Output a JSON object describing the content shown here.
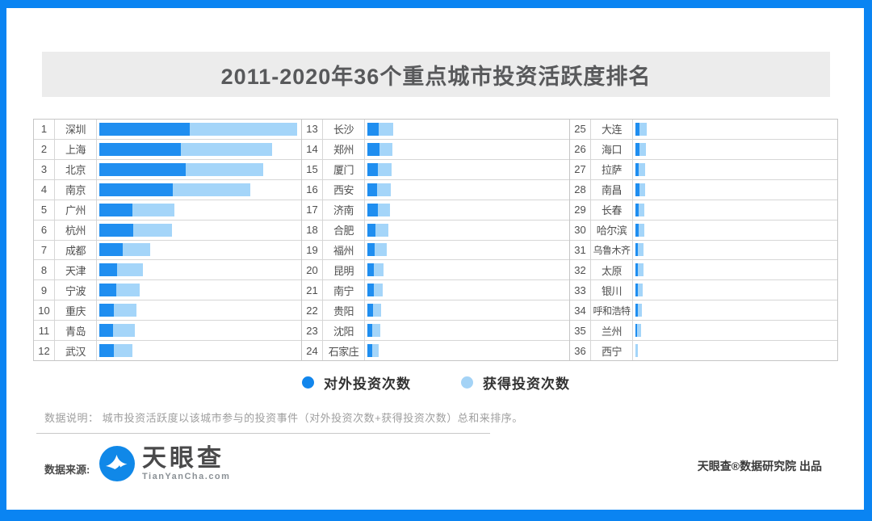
{
  "title": "2011-2020年36个重点城市投资活跃度排名",
  "legend": {
    "outbound": {
      "label": "对外投资次数",
      "color": "#1286ec"
    },
    "received": {
      "label": "获得投资次数",
      "color": "#a4d3f6"
    }
  },
  "note": "数据说明：  城市投资活跃度以该城市参与的投资事件（对外投资次数+获得投资次数）总和来排序。",
  "footer": {
    "source_label": "数据来源:",
    "logo_text": "天眼查",
    "logo_domain": "TianYanCha.com",
    "credit": "天眼查®数据研究院 出品"
  },
  "watermark": {
    "text": "天眼查",
    "domain": "TianYanCha.com"
  },
  "colors": {
    "frame": "#0a84f2",
    "banner_bg": "#ececec",
    "bar_outbound": "#1f8ef0",
    "bar_received": "#a4d5f9"
  },
  "chart_data": {
    "type": "bar",
    "orientation": "horizontal",
    "stacked": true,
    "title": "2011-2020年36个重点城市投资活跃度排名",
    "series_names": [
      "对外投资次数",
      "获得投资次数"
    ],
    "value_unit": "estimated relative bar length (no numeric axis shown in source)",
    "layout": "3 columns × 12 rows, ranked 1-36",
    "rows": [
      {
        "rank": 1,
        "city": "深圳",
        "out": 112,
        "rec": 133
      },
      {
        "rank": 2,
        "city": "上海",
        "out": 101,
        "rec": 113
      },
      {
        "rank": 3,
        "city": "北京",
        "out": 107,
        "rec": 96
      },
      {
        "rank": 4,
        "city": "南京",
        "out": 91,
        "rec": 96
      },
      {
        "rank": 5,
        "city": "广州",
        "out": 41,
        "rec": 52
      },
      {
        "rank": 6,
        "city": "杭州",
        "out": 42,
        "rec": 48
      },
      {
        "rank": 7,
        "city": "成都",
        "out": 29,
        "rec": 34
      },
      {
        "rank": 8,
        "city": "天津",
        "out": 22,
        "rec": 32
      },
      {
        "rank": 9,
        "city": "宁波",
        "out": 21,
        "rec": 29
      },
      {
        "rank": 10,
        "city": "重庆",
        "out": 18,
        "rec": 28
      },
      {
        "rank": 11,
        "city": "青岛",
        "out": 17,
        "rec": 27
      },
      {
        "rank": 12,
        "city": "武汉",
        "out": 18,
        "rec": 23
      },
      {
        "rank": 13,
        "city": "长沙",
        "out": 14,
        "rec": 18
      },
      {
        "rank": 14,
        "city": "郑州",
        "out": 15,
        "rec": 16
      },
      {
        "rank": 15,
        "city": "厦门",
        "out": 13,
        "rec": 17
      },
      {
        "rank": 16,
        "city": "西安",
        "out": 12,
        "rec": 17
      },
      {
        "rank": 17,
        "city": "济南",
        "out": 13,
        "rec": 15
      },
      {
        "rank": 18,
        "city": "合肥",
        "out": 10,
        "rec": 16
      },
      {
        "rank": 19,
        "city": "福州",
        "out": 9,
        "rec": 15
      },
      {
        "rank": 20,
        "city": "昆明",
        "out": 8,
        "rec": 12
      },
      {
        "rank": 21,
        "city": "南宁",
        "out": 8,
        "rec": 11
      },
      {
        "rank": 22,
        "city": "贵阳",
        "out": 7,
        "rec": 10
      },
      {
        "rank": 23,
        "city": "沈阳",
        "out": 6,
        "rec": 10
      },
      {
        "rank": 24,
        "city": "石家庄",
        "out": 6,
        "rec": 8
      },
      {
        "rank": 25,
        "city": "大连",
        "out": 5,
        "rec": 9
      },
      {
        "rank": 26,
        "city": "海口",
        "out": 5,
        "rec": 8
      },
      {
        "rank": 27,
        "city": "拉萨",
        "out": 4,
        "rec": 8
      },
      {
        "rank": 28,
        "city": "南昌",
        "out": 4.5,
        "rec": 7.5
      },
      {
        "rank": 29,
        "city": "长春",
        "out": 3.5,
        "rec": 7.5
      },
      {
        "rank": 30,
        "city": "哈尔滨",
        "out": 3.5,
        "rec": 7
      },
      {
        "rank": 31,
        "city": "乌鲁木齐",
        "out": 3,
        "rec": 7
      },
      {
        "rank": 32,
        "city": "太原",
        "out": 3,
        "rec": 6.5
      },
      {
        "rank": 33,
        "city": "银川",
        "out": 2.5,
        "rec": 6
      },
      {
        "rank": 34,
        "city": "呼和浩特",
        "out": 2.5,
        "rec": 5.5
      },
      {
        "rank": 35,
        "city": "兰州",
        "out": 1.5,
        "rec": 5
      },
      {
        "rank": 36,
        "city": "西宁",
        "out": 0,
        "rec": 2.5
      }
    ]
  }
}
